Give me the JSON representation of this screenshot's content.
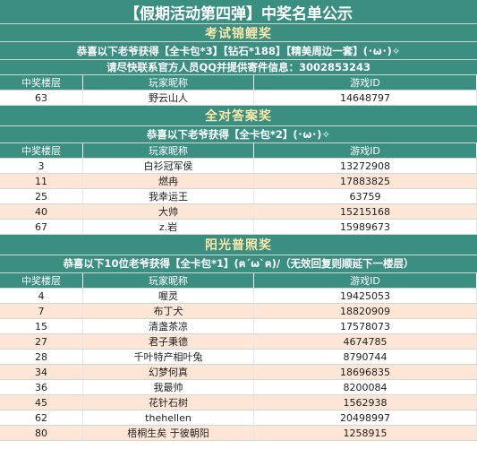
{
  "title": "【假期活动第四弹】中奖名单公示",
  "columns": {
    "floor": "中奖楼层",
    "nickname": "玩家昵称",
    "game_id": "游戏ID"
  },
  "section1": {
    "heading": "考试锦鲤奖",
    "notice1": "恭喜以下老爷获得【全卡包*3】【钻石*188】【精美周边一套】(･ω･)✧",
    "notice2": "请尽快联系官方人员QQ并提供寄件信息：3002853243",
    "rows": [
      {
        "floor": "63",
        "nickname": "野云山人",
        "game_id": "14648797"
      }
    ]
  },
  "section2": {
    "heading": "全对答案奖",
    "notice1": "恭喜以下老爷获得【全卡包*2】(･ω･)✧",
    "rows": [
      {
        "floor": "3",
        "nickname": "白衫冠军侯",
        "game_id": "13272908"
      },
      {
        "floor": "11",
        "nickname": "燃冉",
        "game_id": "17883825"
      },
      {
        "floor": "25",
        "nickname": "我幸运王",
        "game_id": "63759"
      },
      {
        "floor": "40",
        "nickname": "大帅",
        "game_id": "15215168"
      },
      {
        "floor": "67",
        "nickname": "z.岩",
        "game_id": "15989673"
      }
    ]
  },
  "section3": {
    "heading": "阳光普照奖",
    "notice1": "恭喜以下10位老爷获得【全卡包*1】(ฅ´ω`ฅ)/（无效回复则顺延下一楼层）",
    "rows": [
      {
        "floor": "4",
        "nickname": "喔灵",
        "game_id": "19425053"
      },
      {
        "floor": "7",
        "nickname": "布丁犬",
        "game_id": "18820909"
      },
      {
        "floor": "15",
        "nickname": "清盏茶凉",
        "game_id": "17578073"
      },
      {
        "floor": "27",
        "nickname": "君子秉德",
        "game_id": "4674785"
      },
      {
        "floor": "28",
        "nickname": "千叶特产相叶兔",
        "game_id": "8790744"
      },
      {
        "floor": "34",
        "nickname": "幻梦何真",
        "game_id": "18696835"
      },
      {
        "floor": "36",
        "nickname": "我最帅",
        "game_id": "8200084"
      },
      {
        "floor": "45",
        "nickname": "花针石树",
        "game_id": "1562938"
      },
      {
        "floor": "62",
        "nickname": "thehellen",
        "game_id": "20498997"
      },
      {
        "floor": "80",
        "nickname": "梧桐生矣 于彼朝阳",
        "game_id": "1258915"
      }
    ]
  }
}
